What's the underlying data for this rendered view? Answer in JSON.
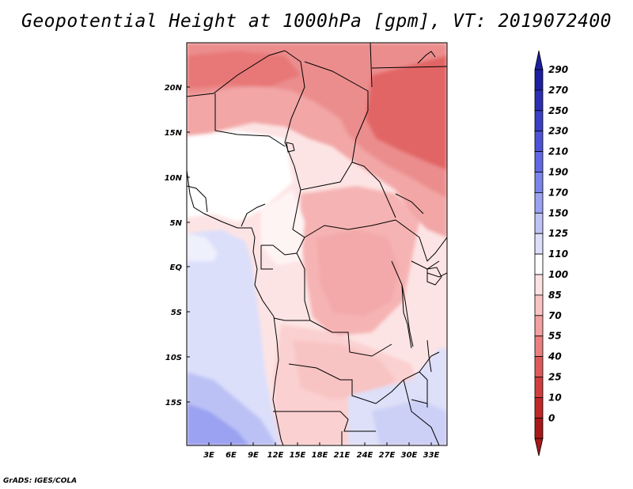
{
  "title": "Geopotential Height at 1000hPa [gpm], VT: 2019072400",
  "credit": "GrADS: IGES/COLA",
  "map": {
    "lat_ticks": [
      "20N",
      "15N",
      "10N",
      "5N",
      "EQ",
      "5S",
      "10S",
      "15S"
    ],
    "lon_ticks": [
      "3E",
      "6E",
      "9E",
      "12E",
      "15E",
      "18E",
      "21E",
      "24E",
      "27E",
      "30E",
      "33E"
    ]
  },
  "colorbar": {
    "labels": [
      "290",
      "270",
      "250",
      "230",
      "210",
      "190",
      "170",
      "150",
      "125",
      "110",
      "100",
      "85",
      "70",
      "55",
      "40",
      "25",
      "10",
      "0"
    ],
    "colors": [
      "#1c1fa0",
      "#2d2fb2",
      "#3b3fc4",
      "#4c53d6",
      "#5f69e2",
      "#7a84ea",
      "#9aa2f1",
      "#bec3f6",
      "#dcdffa",
      "#ffffff",
      "#fde2e2",
      "#f9c3c3",
      "#f2a0a0",
      "#ea7f7f",
      "#de5a5a",
      "#d13e3e",
      "#c02828",
      "#a81818"
    ]
  }
}
